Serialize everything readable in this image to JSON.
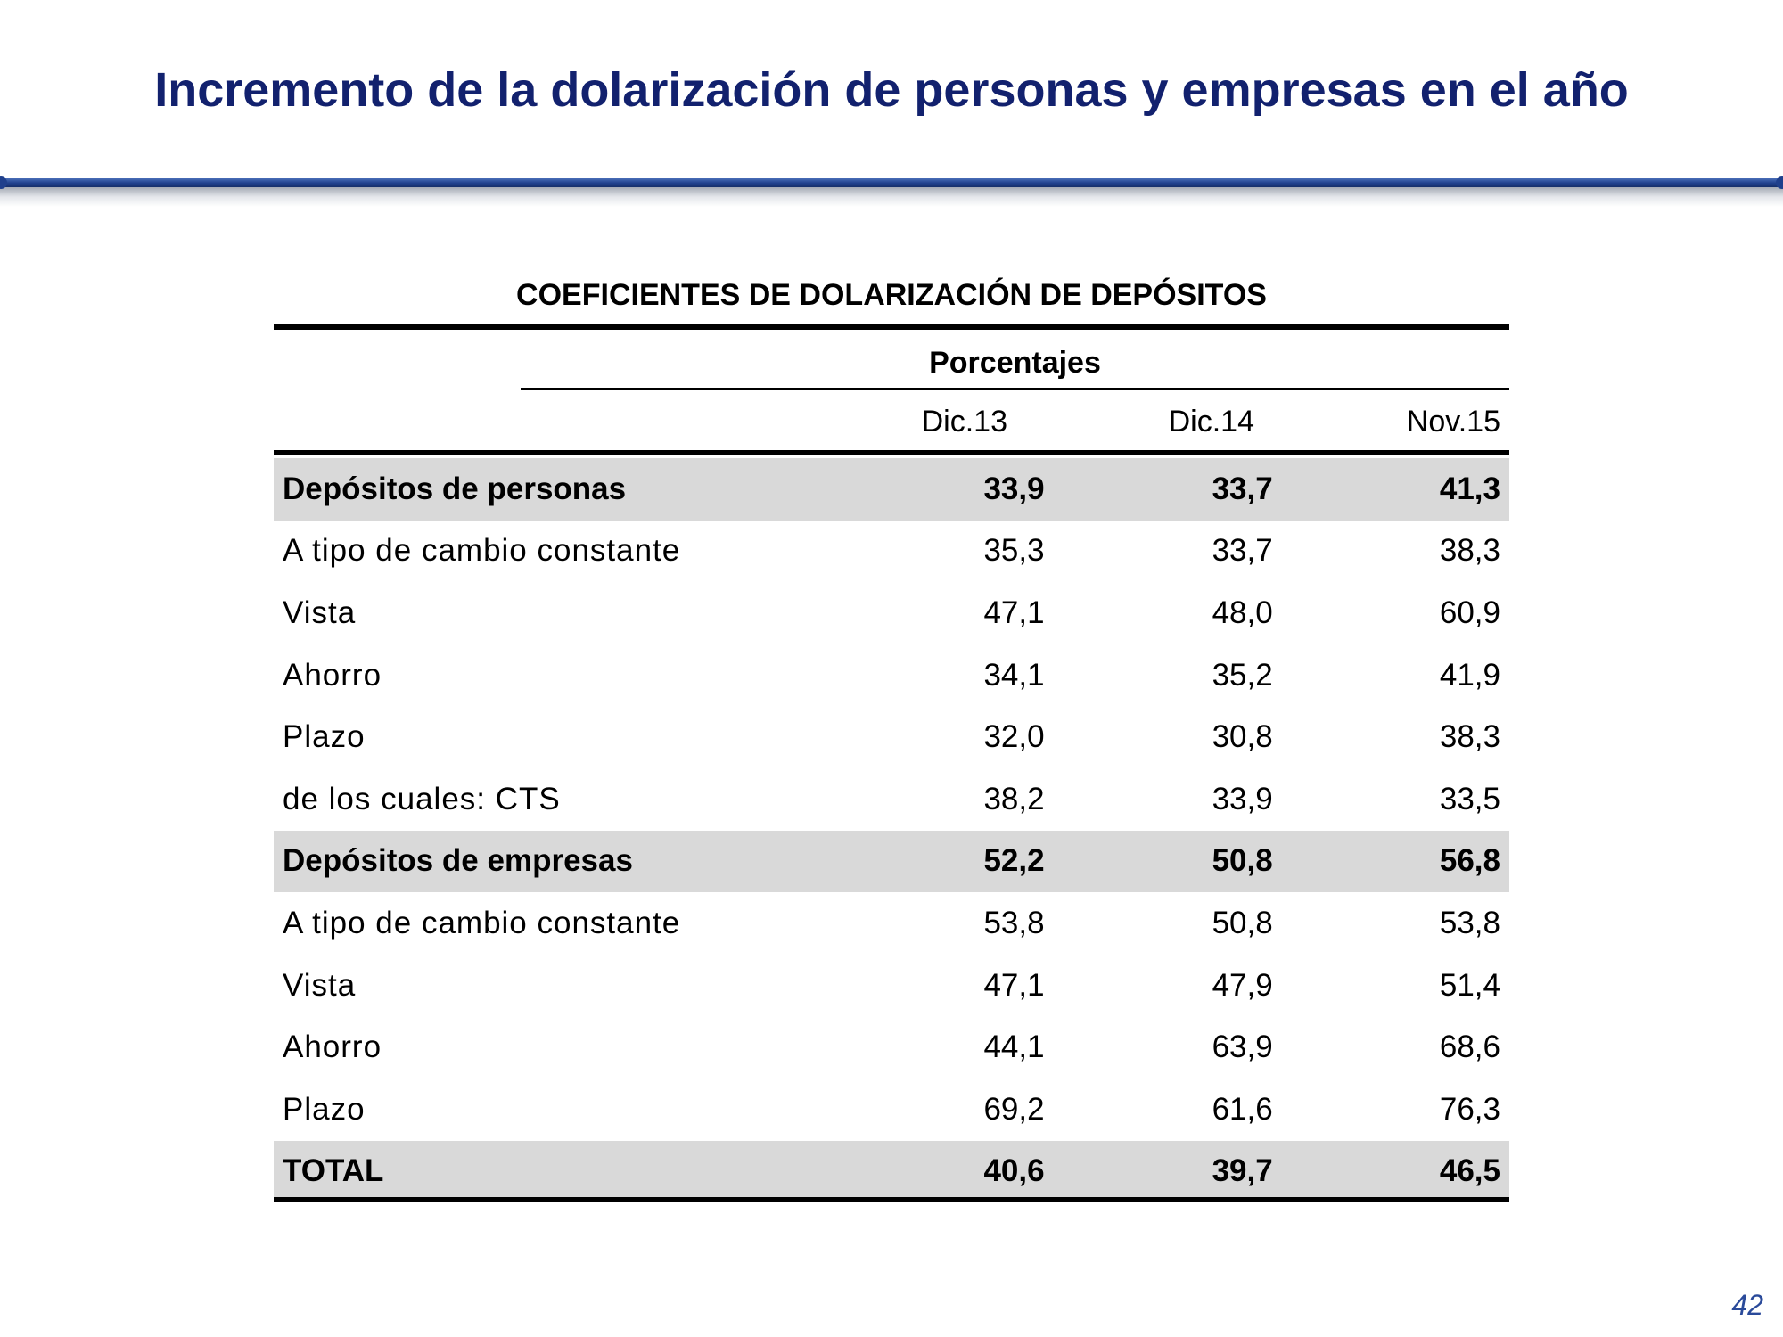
{
  "slide": {
    "title": "Incremento de la dolarización de personas y empresas en el año",
    "page_number": "42"
  },
  "chart_data": {
    "type": "table",
    "title": "COEFICIENTES DE DOLARIZACIÓN DE DEPÓSITOS",
    "units": "Porcentajes",
    "columns": [
      "Dic.13",
      "Dic.14",
      "Nov.15"
    ],
    "rows": [
      {
        "label": "Depósitos de personas",
        "values": [
          "33,9",
          "33,7",
          "41,3"
        ],
        "bold": true
      },
      {
        "label": "A tipo de cambio constante",
        "values": [
          "35,3",
          "33,7",
          "38,3"
        ],
        "bold": false
      },
      {
        "label": "Vista",
        "values": [
          "47,1",
          "48,0",
          "60,9"
        ],
        "bold": false
      },
      {
        "label": "Ahorro",
        "values": [
          "34,1",
          "35,2",
          "41,9"
        ],
        "bold": false
      },
      {
        "label": "Plazo",
        "values": [
          "32,0",
          "30,8",
          "38,3"
        ],
        "bold": false
      },
      {
        "label": "de los cuales: CTS",
        "values": [
          "38,2",
          "33,9",
          "33,5"
        ],
        "bold": false
      },
      {
        "label": "Depósitos de empresas",
        "values": [
          "52,2",
          "50,8",
          "56,8"
        ],
        "bold": true
      },
      {
        "label": "A tipo de cambio constante",
        "values": [
          "53,8",
          "50,8",
          "53,8"
        ],
        "bold": false
      },
      {
        "label": "Vista",
        "values": [
          "47,1",
          "47,9",
          "51,4"
        ],
        "bold": false
      },
      {
        "label": "Ahorro",
        "values": [
          "44,1",
          "63,9",
          "68,6"
        ],
        "bold": false
      },
      {
        "label": "Plazo",
        "values": [
          "69,2",
          "61,6",
          "76,3"
        ],
        "bold": false
      },
      {
        "label": "TOTAL",
        "values": [
          "40,6",
          "39,7",
          "46,5"
        ],
        "bold": true
      }
    ]
  }
}
